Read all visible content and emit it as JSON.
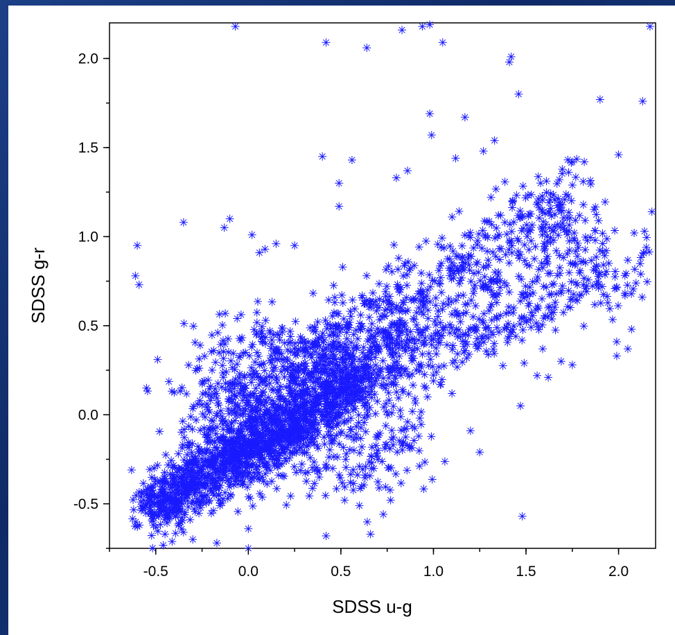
{
  "colors": {
    "background": "#163a7e",
    "panel": "#ffffff",
    "marker": "#1a1aff"
  },
  "chart_data": {
    "type": "scatter",
    "marker": "asterisk",
    "xlabel": "SDSS u-g",
    "ylabel": "SDSS g-r",
    "xlim": [
      -0.75,
      2.2
    ],
    "ylim": [
      -0.75,
      2.2
    ],
    "xticks": [
      "-0.5",
      "0.0",
      "0.5",
      "1.0",
      "1.5",
      "2.0"
    ],
    "yticks": [
      "-0.5",
      "0.0",
      "0.5",
      "1.0",
      "1.5",
      "2.0"
    ],
    "grid": false,
    "series": [
      {
        "color": "#1a1aff",
        "points": [
          [
            -0.6,
            0.95
          ],
          [
            -0.61,
            0.78
          ],
          [
            -0.59,
            0.73
          ],
          [
            -0.55,
            0.15
          ],
          [
            -0.49,
            0.31
          ],
          [
            -0.35,
            1.08
          ],
          [
            -0.13,
            1.05
          ],
          [
            -0.1,
            1.1
          ],
          [
            0.02,
            1.01
          ],
          [
            0.06,
            0.91
          ],
          [
            0.09,
            0.93
          ],
          [
            0.15,
            0.96
          ],
          [
            0.25,
            0.95
          ],
          [
            0.4,
            1.45
          ],
          [
            0.49,
            1.3
          ],
          [
            0.49,
            1.17
          ],
          [
            0.56,
            1.43
          ],
          [
            0.8,
            1.33
          ],
          [
            0.86,
            1.37
          ],
          [
            0.98,
            1.69
          ],
          [
            0.99,
            1.57
          ],
          [
            1.17,
            1.67
          ],
          [
            1.12,
            1.44
          ],
          [
            1.27,
            1.48
          ],
          [
            1.33,
            1.54
          ],
          [
            1.41,
            1.98
          ],
          [
            1.42,
            2.01
          ],
          [
            1.46,
            1.8
          ],
          [
            1.75,
            1.42
          ],
          [
            1.9,
            1.77
          ],
          [
            2.0,
            1.46
          ],
          [
            2.13,
            1.76
          ],
          [
            -0.07,
            2.18
          ],
          [
            0.42,
            2.09
          ],
          [
            0.64,
            2.06
          ],
          [
            0.83,
            2.16
          ],
          [
            0.94,
            2.18
          ],
          [
            0.98,
            2.19
          ],
          [
            1.05,
            2.09
          ],
          [
            2.17,
            2.18
          ],
          [
            0.74,
            0.47
          ],
          [
            0.82,
            0.26
          ],
          [
            0.94,
            0.34
          ],
          [
            1.0,
            0.19
          ],
          [
            1.04,
            0.17
          ],
          [
            1.1,
            0.12
          ],
          [
            1.2,
            -0.09
          ],
          [
            1.25,
            -0.21
          ],
          [
            1.47,
            0.05
          ],
          [
            1.48,
            -0.57
          ],
          [
            1.56,
            0.22
          ],
          [
            1.62,
            0.21
          ],
          [
            1.69,
            0.3
          ],
          [
            1.75,
            0.28
          ],
          [
            1.99,
            0.33
          ],
          [
            1.99,
            0.41
          ],
          [
            2.05,
            0.37
          ],
          [
            2.07,
            0.48
          ],
          [
            1.49,
            0.29
          ],
          [
            1.59,
            0.37
          ],
          [
            0.52,
            -0.48
          ],
          [
            0.6,
            -0.51
          ],
          [
            0.66,
            -0.67
          ],
          [
            0.42,
            -0.68
          ],
          [
            0.0,
            -0.64
          ],
          [
            0.0,
            -0.75
          ],
          [
            -0.17,
            -0.72
          ],
          [
            -0.3,
            -0.7
          ],
          [
            -0.35,
            -0.66
          ],
          [
            -0.45,
            -0.67
          ],
          [
            0.86,
            -0.04
          ],
          [
            0.92,
            -0.12
          ],
          [
            0.7,
            -0.2
          ],
          [
            0.9,
            0.09
          ],
          [
            2.15,
            0.94
          ],
          [
            2.12,
            0.79
          ],
          [
            2.18,
            1.14
          ],
          [
            2.14,
            1.03
          ]
        ]
      }
    ]
  }
}
